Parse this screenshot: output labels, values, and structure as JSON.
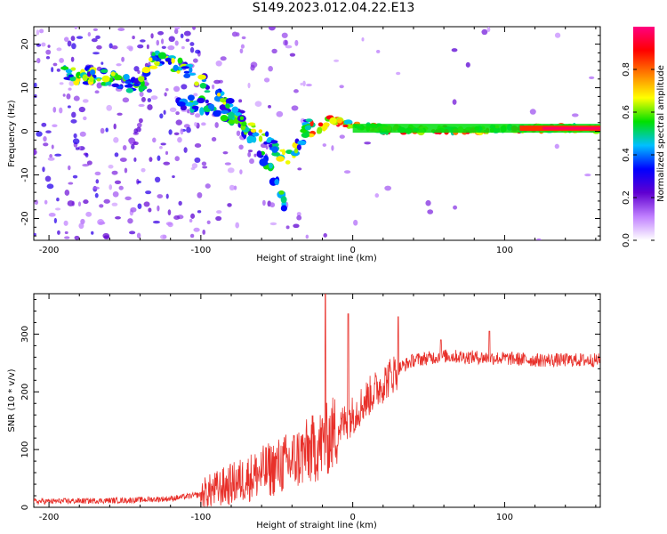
{
  "title": "S149.2023.012.04.22.E13",
  "chart_data": [
    {
      "type": "heatmap",
      "xlabel": "Height of straight line (km)",
      "ylabel": "Frequency (Hz)",
      "xlim": [
        -210,
        163
      ],
      "ylim": [
        -25,
        24
      ],
      "x_ticks": [
        -200,
        -100,
        0,
        100
      ],
      "y_ticks": [
        -20,
        -10,
        0,
        10,
        20
      ],
      "colorbar": {
        "label": "Normalized spectral amplitude",
        "range": [
          0.0,
          1.0
        ],
        "ticks": [
          0.0,
          0.2,
          0.4,
          0.6,
          0.8
        ],
        "colors": [
          "#ffffff",
          "#c080ff",
          "#6000d0",
          "#0000ff",
          "#00c0ff",
          "#00e000",
          "#ffff00",
          "#ff8000",
          "#ff0000",
          "#ff0080"
        ]
      },
      "ridge": {
        "x": [
          -190,
          -180,
          -170,
          -160,
          -150,
          -140,
          -130,
          -120,
          -110,
          -100,
          -90,
          -80,
          -70,
          -60,
          -50,
          -42,
          -35,
          -30,
          -25,
          -20,
          -15,
          -10,
          0,
          20,
          50,
          80,
          100,
          120,
          163
        ],
        "y": [
          13,
          13,
          12.5,
          12,
          11,
          10,
          17,
          16,
          14,
          12,
          9,
          5,
          2,
          -1,
          -4,
          -6,
          -3,
          1,
          0.5,
          0,
          3,
          2,
          1.5,
          0.5,
          0.3,
          0.3,
          0.5,
          0.7,
          0.7
        ]
      },
      "lower_branch": {
        "x": [
          -115,
          -100,
          -90,
          -80,
          -70,
          -60,
          -50,
          -45
        ],
        "y": [
          7,
          6,
          5,
          3,
          0,
          -5,
          -12,
          -17
        ]
      }
    },
    {
      "type": "line",
      "xlabel": "Height of straight line (km)",
      "ylabel": "SNR (10 * v/v)",
      "xlim": [
        -210,
        163
      ],
      "ylim": [
        0,
        370
      ],
      "x_ticks": [
        -200,
        -100,
        0,
        100
      ],
      "y_ticks": [
        0,
        100,
        200,
        300
      ],
      "color": "#e8302a",
      "trend": {
        "x": [
          -210,
          -150,
          -120,
          -100,
          -80,
          -60,
          -40,
          -20,
          0,
          10,
          20,
          30,
          40,
          60,
          80,
          100,
          120,
          163
        ],
        "y": [
          10,
          12,
          15,
          22,
          40,
          60,
          80,
          110,
          160,
          190,
          215,
          240,
          255,
          262,
          260,
          258,
          255,
          255
        ]
      },
      "spikes": [
        {
          "x": -18,
          "y": 370
        },
        {
          "x": -3,
          "y": 335
        },
        {
          "x": 30,
          "y": 330
        },
        {
          "x": 90,
          "y": 305
        },
        {
          "x": 58,
          "y": 290
        }
      ]
    }
  ]
}
